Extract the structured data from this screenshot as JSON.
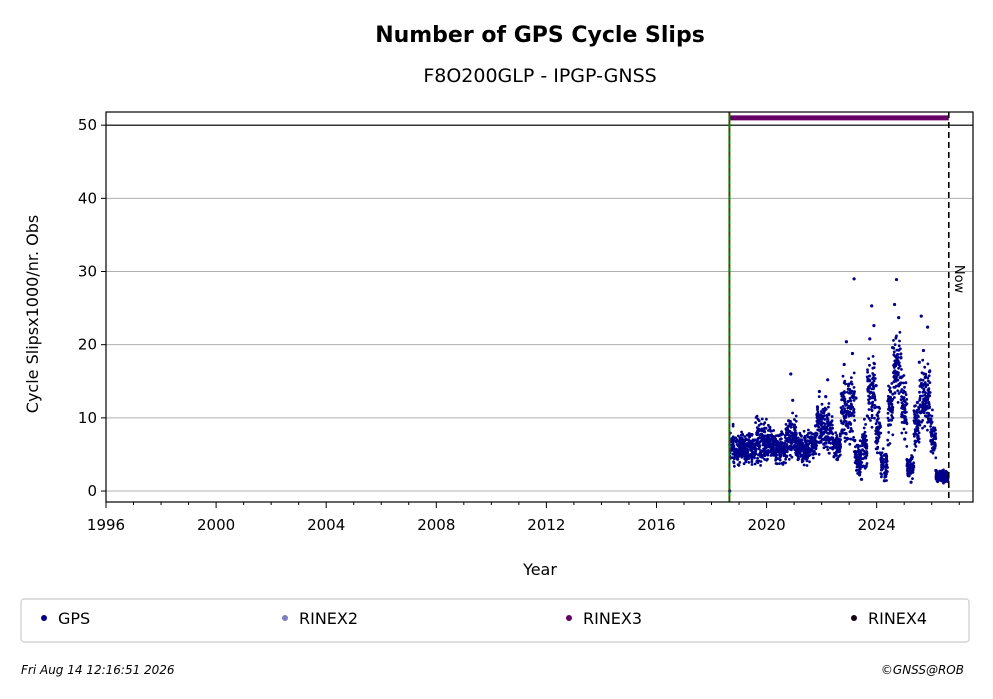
{
  "chart_data": {
    "type": "scatter",
    "title": "Number of GPS Cycle Slips",
    "subtitle": "F8O200GLP - IPGP-GNSS",
    "xlabel": "Year",
    "ylabel": "Cycle Slipsx1000/nr. Obs",
    "xlim": [
      1996,
      2027.5
    ],
    "ylim": [
      -1.5,
      51.8
    ],
    "x_ticks": [
      1996,
      2000,
      2004,
      2008,
      2012,
      2016,
      2020,
      2024
    ],
    "y_ticks": [
      0,
      10,
      20,
      30,
      40,
      50
    ],
    "grid": "horizontal",
    "reference_line_y": 50,
    "start_marker_x": 2018.65,
    "now_marker": {
      "x": 2026.62,
      "label": "Now"
    },
    "series": [
      {
        "name": "GPS",
        "color": "#00008b",
        "points": [
          [
            2018.66,
            0
          ],
          [
            2018.68,
            4.5
          ],
          [
            2018.72,
            5.8
          ],
          [
            2018.78,
            6.4
          ],
          [
            2018.85,
            5.2
          ],
          [
            2018.92,
            6.8
          ],
          [
            2019.0,
            5.5
          ],
          [
            2019.08,
            7.1
          ],
          [
            2019.15,
            4.8
          ],
          [
            2019.22,
            6.2
          ],
          [
            2019.3,
            5.6
          ],
          [
            2019.38,
            7.5
          ],
          [
            2019.45,
            4.6
          ],
          [
            2019.52,
            6.0
          ],
          [
            2019.6,
            5.1
          ],
          [
            2019.68,
            8.2
          ],
          [
            2019.75,
            6.7
          ],
          [
            2019.82,
            5.4
          ],
          [
            2019.9,
            7.3
          ],
          [
            2019.98,
            5.9
          ],
          [
            2020.05,
            6.5
          ],
          [
            2020.12,
            8.7
          ],
          [
            2020.2,
            5.2
          ],
          [
            2020.28,
            7.0
          ],
          [
            2020.35,
            4.9
          ],
          [
            2020.42,
            6.3
          ],
          [
            2020.5,
            5.5
          ],
          [
            2020.58,
            7.8
          ],
          [
            2020.65,
            6.1
          ],
          [
            2020.72,
            4.7
          ],
          [
            2020.8,
            9.6
          ],
          [
            2020.88,
            16.0
          ],
          [
            2020.95,
            12.4
          ],
          [
            2021.02,
            7.2
          ],
          [
            2021.1,
            5.3
          ],
          [
            2021.18,
            6.6
          ],
          [
            2021.25,
            4.9
          ],
          [
            2021.32,
            5.8
          ],
          [
            2021.4,
            6.9
          ],
          [
            2021.48,
            4.6
          ],
          [
            2021.55,
            5.7
          ],
          [
            2021.62,
            7.4
          ],
          [
            2021.7,
            5.1
          ],
          [
            2021.78,
            8.9
          ],
          [
            2021.85,
            11.5
          ],
          [
            2021.92,
            13.6
          ],
          [
            2022.0,
            9.8
          ],
          [
            2022.08,
            6.4
          ],
          [
            2022.15,
            12.9
          ],
          [
            2022.22,
            15.2
          ],
          [
            2022.3,
            8.3
          ],
          [
            2022.38,
            5.9
          ],
          [
            2022.45,
            4.7
          ],
          [
            2022.52,
            6.2
          ],
          [
            2022.6,
            5.4
          ],
          [
            2022.68,
            7.8
          ],
          [
            2022.75,
            12.5
          ],
          [
            2022.82,
            17.3
          ],
          [
            2022.9,
            20.4
          ],
          [
            2022.98,
            14.6
          ],
          [
            2023.05,
            9.2
          ],
          [
            2023.12,
            18.8
          ],
          [
            2023.18,
            29.0
          ],
          [
            2023.25,
            12.7
          ],
          [
            2023.32,
            4.1
          ],
          [
            2023.38,
            2.2
          ],
          [
            2023.45,
            1.6
          ],
          [
            2023.52,
            3.4
          ],
          [
            2023.6,
            7.5
          ],
          [
            2023.68,
            13.9
          ],
          [
            2023.75,
            20.8
          ],
          [
            2023.82,
            25.3
          ],
          [
            2023.9,
            22.6
          ],
          [
            2023.98,
            14.4
          ],
          [
            2024.05,
            8.7
          ],
          [
            2024.12,
            5.2
          ],
          [
            2024.2,
            3.0
          ],
          [
            2024.28,
            1.4
          ],
          [
            2024.35,
            2.7
          ],
          [
            2024.42,
            6.3
          ],
          [
            2024.5,
            12.8
          ],
          [
            2024.58,
            19.6
          ],
          [
            2024.65,
            25.5
          ],
          [
            2024.72,
            28.9
          ],
          [
            2024.8,
            23.7
          ],
          [
            2024.88,
            18.2
          ],
          [
            2024.95,
            11.6
          ],
          [
            2025.02,
            7.1
          ],
          [
            2025.1,
            4.3
          ],
          [
            2025.18,
            2.1
          ],
          [
            2025.25,
            1.2
          ],
          [
            2025.32,
            2.9
          ],
          [
            2025.4,
            6.8
          ],
          [
            2025.48,
            12.1
          ],
          [
            2025.55,
            17.6
          ],
          [
            2025.62,
            23.9
          ],
          [
            2025.7,
            19.2
          ],
          [
            2025.78,
            14.5
          ],
          [
            2025.85,
            22.4
          ],
          [
            2025.92,
            16.3
          ],
          [
            2026.0,
            9.4
          ],
          [
            2026.08,
            5.6
          ],
          [
            2026.15,
            2.8
          ],
          [
            2026.22,
            1.5
          ],
          [
            2026.3,
            2.4
          ],
          [
            2026.38,
            1.8
          ],
          [
            2026.45,
            1.3
          ],
          [
            2026.52,
            2.0
          ],
          [
            2026.58,
            1.6
          ]
        ],
        "bands": [
          [
            2018.66,
            2018.8,
            3.5,
            9.5
          ],
          [
            2018.8,
            2019.2,
            3.0,
            8.6
          ],
          [
            2019.2,
            2019.6,
            3.2,
            8.3
          ],
          [
            2019.6,
            2020.0,
            2.6,
            10.8
          ],
          [
            2020.0,
            2020.3,
            3.0,
            9.6
          ],
          [
            2020.3,
            2020.7,
            2.8,
            8.8
          ],
          [
            2020.7,
            2021.1,
            3.4,
            11.0
          ],
          [
            2021.1,
            2021.5,
            3.0,
            8.8
          ],
          [
            2021.5,
            2021.8,
            3.6,
            9.2
          ],
          [
            2021.8,
            2022.1,
            4.2,
            13.5
          ],
          [
            2022.1,
            2022.4,
            4.0,
            12.8
          ],
          [
            2022.4,
            2022.7,
            3.5,
            8.5
          ],
          [
            2022.7,
            2022.95,
            5.2,
            16.5
          ],
          [
            2022.95,
            2023.2,
            4.8,
            18.0
          ],
          [
            2023.2,
            2023.45,
            1.2,
            7.5
          ],
          [
            2023.45,
            2023.65,
            1.6,
            11.0
          ],
          [
            2023.65,
            2023.95,
            7.0,
            21.0
          ],
          [
            2023.95,
            2024.15,
            3.0,
            13.5
          ],
          [
            2024.15,
            2024.4,
            1.0,
            6.5
          ],
          [
            2024.4,
            2024.6,
            5.5,
            16.5
          ],
          [
            2024.6,
            2024.9,
            10.0,
            24.0
          ],
          [
            2024.9,
            2025.1,
            5.5,
            17.5
          ],
          [
            2025.1,
            2025.35,
            0.9,
            5.5
          ],
          [
            2025.35,
            2025.55,
            4.0,
            13.5
          ],
          [
            2025.55,
            2025.95,
            7.0,
            19.0
          ],
          [
            2025.95,
            2026.15,
            3.5,
            12.0
          ],
          [
            2026.15,
            2026.6,
            0.9,
            3.0
          ]
        ]
      },
      {
        "name": "RINEX2",
        "color": "#7f7fbf",
        "points": []
      },
      {
        "name": "RINEX3",
        "color": "#660066",
        "line": {
          "y": 51,
          "x_start": 2018.66,
          "x_end": 2026.62
        }
      },
      {
        "name": "RINEX4",
        "color": "#1a0015",
        "points": []
      }
    ],
    "legend": [
      "GPS",
      "RINEX2",
      "RINEX3",
      "RINEX4"
    ],
    "legend_position": "bottom"
  },
  "footer": {
    "timestamp": "Fri Aug 14 12:16:51 2026",
    "credit": "©GNSS@ROB"
  }
}
